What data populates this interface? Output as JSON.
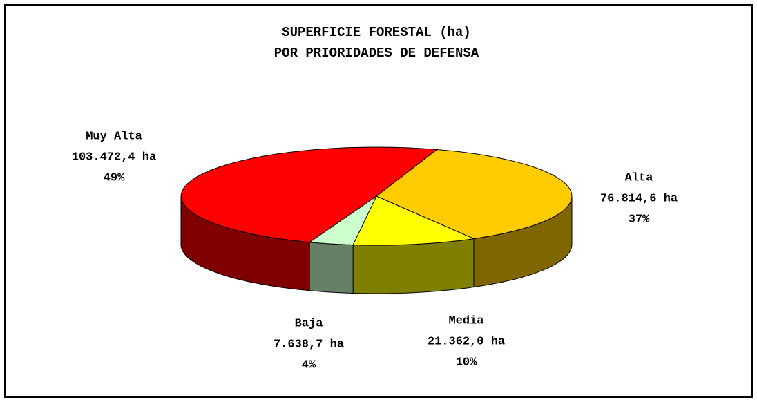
{
  "chart_data": {
    "type": "pie",
    "title": "SUPERFICIE FORESTAL (ha)",
    "subtitle": "POR PRIORIDADES DE DEFENSA",
    "categories": [
      "Alta",
      "Media",
      "Baja",
      "Muy Alta"
    ],
    "values": [
      76814.6,
      21362.0,
      7638.7,
      103472.4
    ],
    "value_labels": [
      "76.814,6 ha",
      "21.362,0 ha",
      "7.638,7 ha",
      "103.472,4 ha"
    ],
    "percent_labels": [
      "37%",
      "10%",
      "4%",
      "49%"
    ],
    "colors": [
      "#ffcc00",
      "#ffff00",
      "#ccffcc",
      "#ff0000"
    ]
  }
}
